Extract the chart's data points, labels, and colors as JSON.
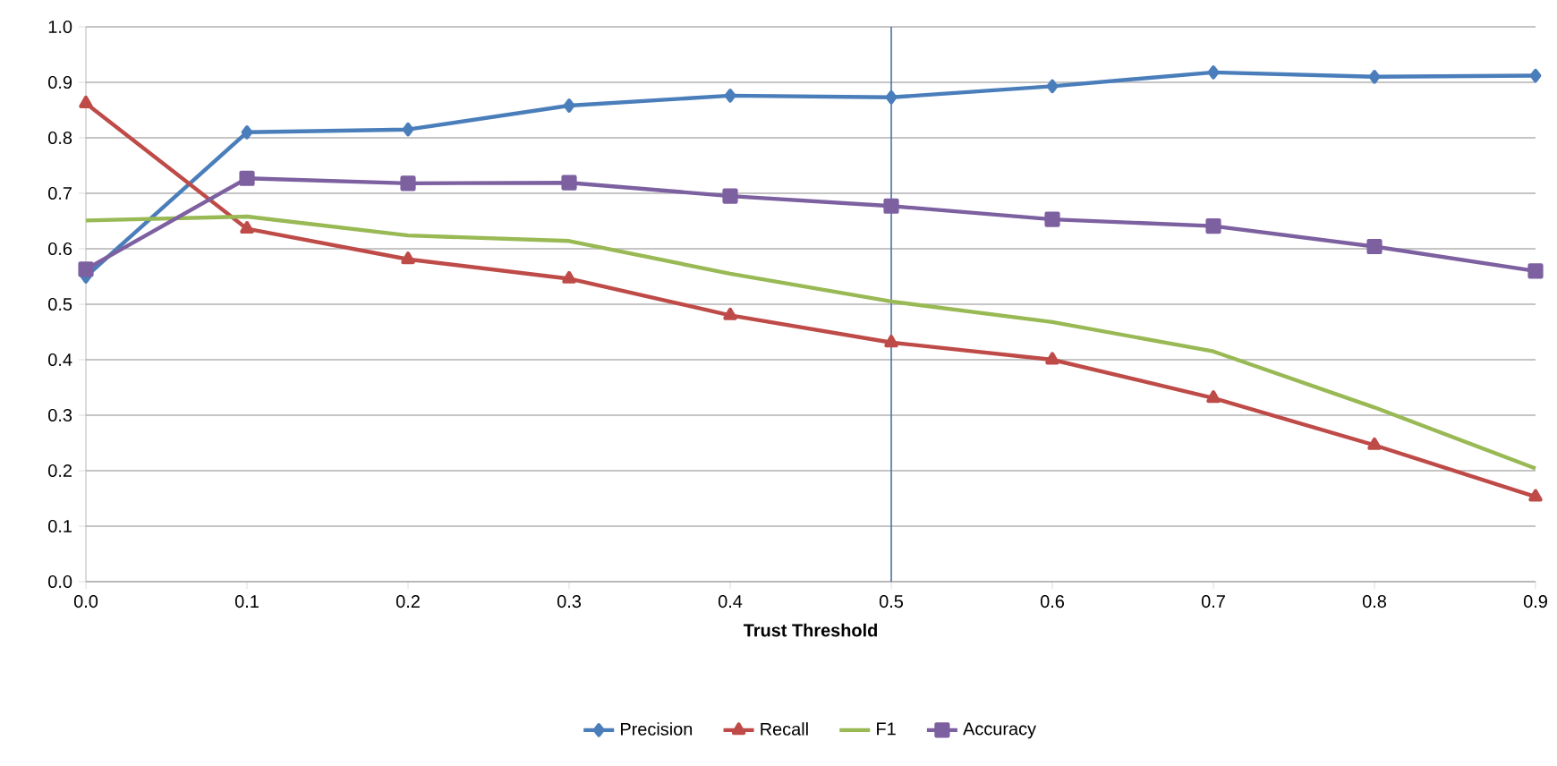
{
  "chart_data": {
    "type": "line",
    "xlabel": "**Trust Threshold**",
    "x": [
      0,
      0.1,
      0.2,
      0.3,
      0.4,
      0.5,
      0.6,
      0.7,
      0.8,
      0.9
    ],
    "series": [
      {
        "name": "Precision",
        "color": "#4a7ebb",
        "marker": "diamond",
        "values": [
          0.55,
          0.81,
          0.815,
          0.858,
          0.876,
          0.873,
          0.893,
          0.918,
          0.91,
          0.912
        ]
      },
      {
        "name": "Recall",
        "color": "#be4b48",
        "marker": "triangle",
        "values": [
          0.862,
          0.636,
          0.581,
          0.546,
          0.48,
          0.431,
          0.4,
          0.331,
          0.246,
          0.153
        ]
      },
      {
        "name": "F1",
        "color": "#98b954",
        "marker": "none",
        "values": [
          0.651,
          0.658,
          0.624,
          0.614,
          0.555,
          0.505,
          0.468,
          0.415,
          0.314,
          0.204
        ]
      },
      {
        "name": "Accuracy",
        "color": "#7d60a0",
        "marker": "square",
        "values": [
          0.563,
          0.727,
          0.718,
          0.719,
          0.695,
          0.677,
          0.653,
          0.641,
          0.604,
          0.56
        ]
      }
    ],
    "xlim": [
      0,
      0.9
    ],
    "xticks": [
      {
        "value": 0,
        "label": "0.0"
      },
      {
        "value": 0.1,
        "label": "0.1"
      },
      {
        "value": 0.2,
        "label": "0.2"
      },
      {
        "value": 0.3,
        "label": "0.3"
      },
      {
        "value": 0.4,
        "label": "0.4"
      },
      {
        "value": 0.5,
        "label": "0.5"
      },
      {
        "value": 0.6,
        "label": "0.6"
      },
      {
        "value": 0.7,
        "label": "0.7"
      },
      {
        "value": 0.8,
        "label": "0.8"
      },
      {
        "value": 0.9,
        "label": "0.9"
      }
    ],
    "ylim": [
      0,
      1
    ],
    "yticks": [
      {
        "value": 0,
        "label": "0.0"
      },
      {
        "value": 0.1,
        "label": "0.1"
      },
      {
        "value": 0.2,
        "label": "0.2"
      },
      {
        "value": 0.3,
        "label": "0.3"
      },
      {
        "value": 0.4,
        "label": "0.4"
      },
      {
        "value": 0.5,
        "label": "0.5"
      },
      {
        "value": 0.6,
        "label": "0.6"
      },
      {
        "value": 0.7,
        "label": "0.7"
      },
      {
        "value": 0.8,
        "label": "0.8"
      },
      {
        "value": 0.9,
        "label": "0.9"
      },
      {
        "value": 1,
        "label": "1.0"
      }
    ],
    "ref_lines": [
      {
        "axis": "x",
        "value": 0.5,
        "color": "#4a6fa5"
      }
    ],
    "grid": "y",
    "legend": "bottom",
    "line_style": "solid"
  }
}
